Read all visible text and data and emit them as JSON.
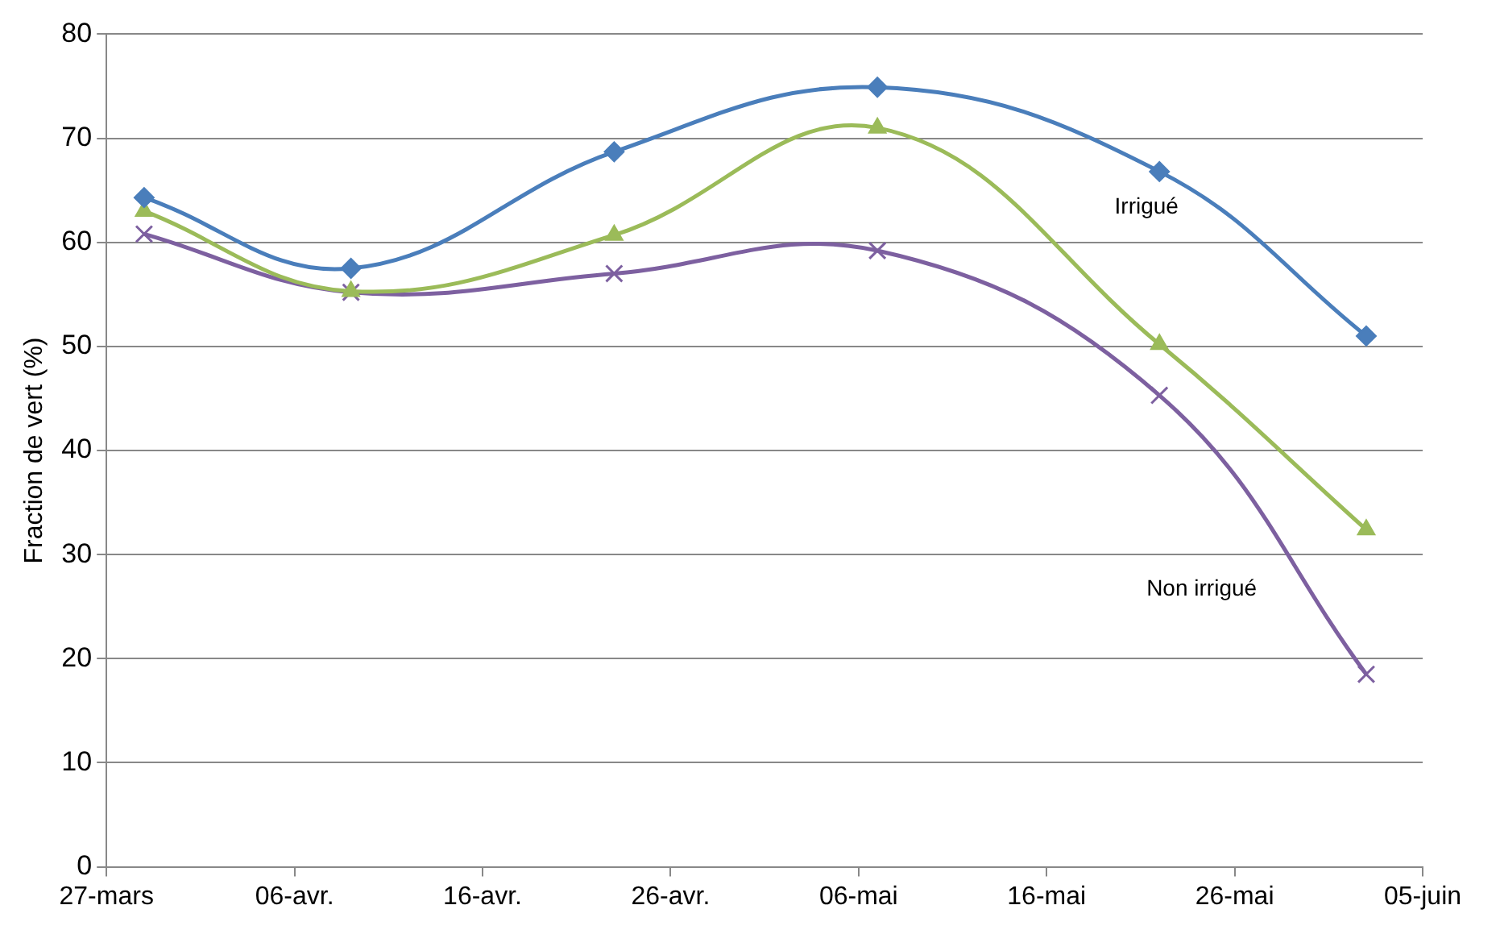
{
  "chart_data": {
    "type": "line",
    "ylabel": "Fraction de vert (%)",
    "x": [
      "--03-29",
      "--04-09",
      "--04-23",
      "--05-07",
      "--05-22",
      "--06-02"
    ],
    "series": [
      {
        "name": "Irrigué",
        "color": "#4a7ebb",
        "marker": "diamond",
        "values": [
          64.3,
          57.5,
          68.7,
          74.9,
          66.8,
          51.0
        ]
      },
      {
        "color": "#9bbb59",
        "marker": "triangle",
        "values": [
          63.0,
          55.3,
          60.7,
          71.0,
          50.2,
          32.4
        ]
      },
      {
        "name": "Non irrigué",
        "color": "#7d60a0",
        "marker": "cross",
        "values": [
          60.8,
          55.2,
          57.0,
          59.2,
          45.3,
          18.5
        ]
      }
    ],
    "xlim": [
      "--03-27",
      "--06-05"
    ],
    "xticks": [
      {
        "value": "--03-27",
        "label": "27-mars"
      },
      {
        "value": "--04-06",
        "label": "06-avr."
      },
      {
        "value": "--04-16",
        "label": "16-avr."
      },
      {
        "value": "--04-26",
        "label": "26-avr."
      },
      {
        "value": "--05-06",
        "label": "06-mai"
      },
      {
        "value": "--05-16",
        "label": "16-mai"
      },
      {
        "value": "--05-26",
        "label": "26-mai"
      },
      {
        "value": "--06-05",
        "label": "05-juin"
      }
    ],
    "ylim": [
      0,
      80
    ],
    "yticks": [
      0,
      10,
      20,
      30,
      40,
      50,
      60,
      70,
      80
    ],
    "grid": "y",
    "legend": false,
    "line_style": "solid"
  }
}
